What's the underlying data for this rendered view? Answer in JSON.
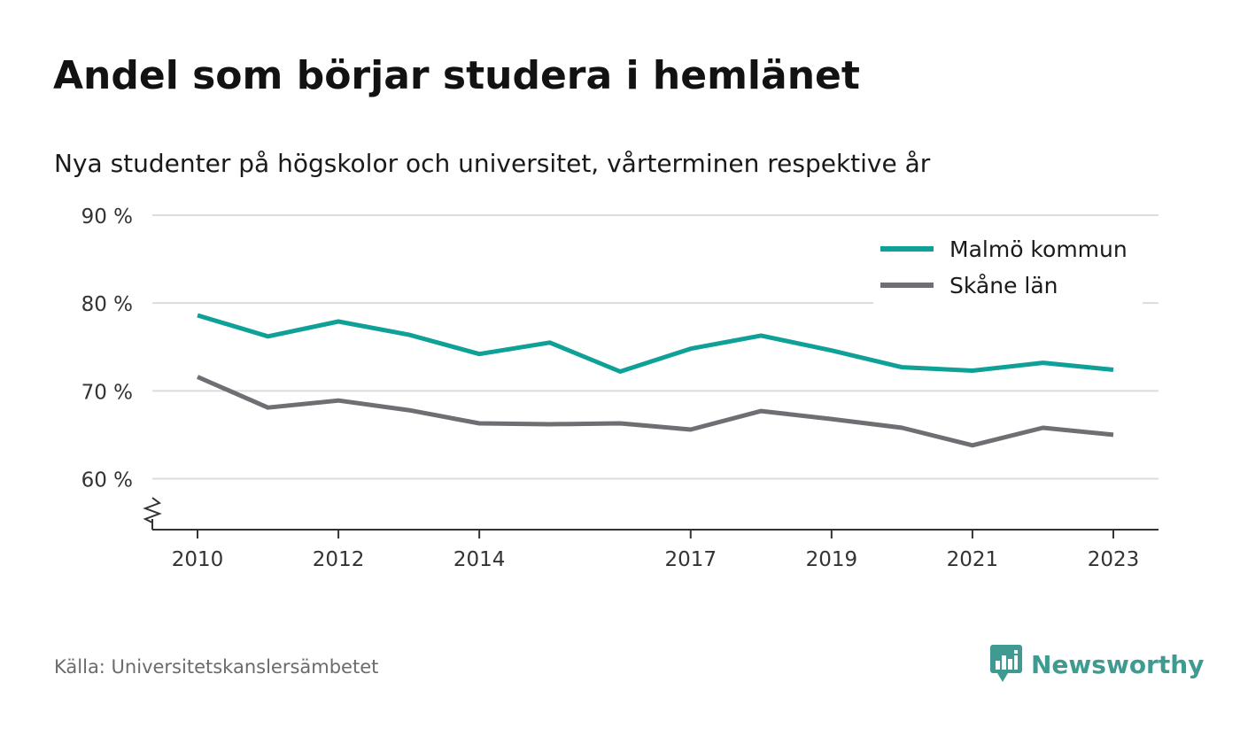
{
  "header": {
    "title": "Andel som börjar studera i hemlänet",
    "subtitle": "Nya studenter på högskolor och universitet, vårterminen respektive år"
  },
  "footer": {
    "source": "Källa: Universitetskanslersämbetet",
    "brand": "Newsworthy",
    "brand_icon": "bar-chart-speech-bubble-icon",
    "brand_color": "#3f9b91"
  },
  "chart_data": {
    "type": "line",
    "x": [
      2010,
      2011,
      2012,
      2013,
      2014,
      2015,
      2016,
      2017,
      2018,
      2019,
      2020,
      2021,
      2022,
      2023
    ],
    "x_tick_labels": [
      "2010",
      "2012",
      "2014",
      "2017",
      "2019",
      "2021",
      "2023"
    ],
    "y_ticks": [
      60,
      70,
      80,
      90
    ],
    "y_tick_labels": [
      "60 %",
      "70 %",
      "80 %",
      "90 %"
    ],
    "ylim": [
      54.2,
      90
    ],
    "axis_break": true,
    "grid": true,
    "legend_position": "top-right",
    "series": [
      {
        "name": "Malmö kommun",
        "color": "#0fa197",
        "values": [
          78.6,
          76.2,
          77.9,
          76.4,
          74.2,
          75.5,
          72.2,
          74.8,
          76.3,
          74.6,
          72.7,
          72.3,
          73.2,
          72.4
        ]
      },
      {
        "name": "Skåne län",
        "color": "#6f6f73",
        "values": [
          71.6,
          68.1,
          68.9,
          67.8,
          66.3,
          66.2,
          66.3,
          65.6,
          67.7,
          66.8,
          65.8,
          63.8,
          65.8,
          65.0
        ]
      }
    ]
  }
}
